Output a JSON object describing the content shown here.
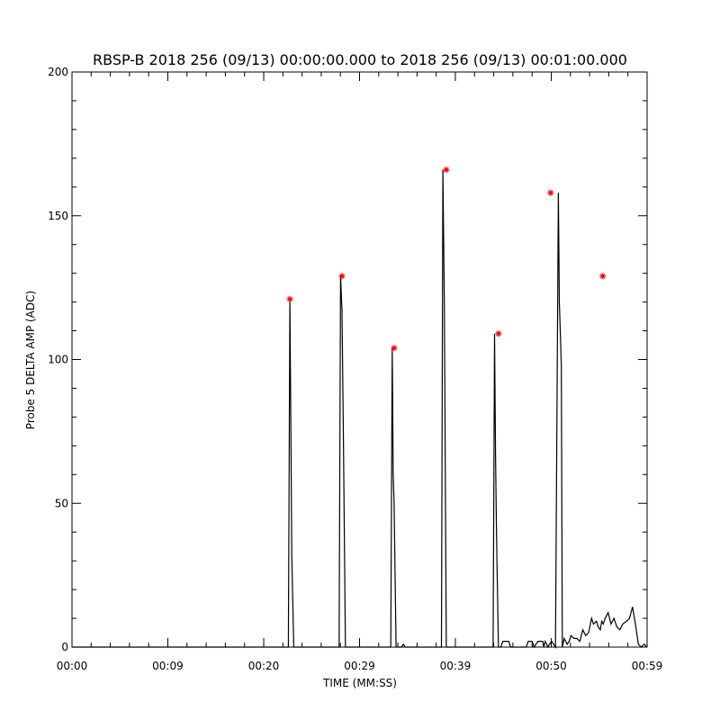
{
  "chart_data": {
    "type": "line",
    "title": "RBSP-B 2018 256 (09/13) 00:00:00.000 to 2018 256 (09/13) 00:01:00.000",
    "xlabel": "TIME (MM:SS)",
    "ylabel": "Probe 5 DELTA AMP (ADC)",
    "xlim": [
      0,
      59
    ],
    "ylim": [
      0,
      200
    ],
    "x_ticks": [
      {
        "value": 0,
        "label": "00:00"
      },
      {
        "value": 9.83,
        "label": "00:09"
      },
      {
        "value": 19.67,
        "label": "00:20"
      },
      {
        "value": 29.5,
        "label": "00:29"
      },
      {
        "value": 39.33,
        "label": "00:39"
      },
      {
        "value": 49.17,
        "label": "00:50"
      },
      {
        "value": 59,
        "label": "00:59"
      }
    ],
    "y_ticks": [
      {
        "value": 0,
        "label": "0"
      },
      {
        "value": 50,
        "label": "50"
      },
      {
        "value": 100,
        "label": "100"
      },
      {
        "value": 150,
        "label": "150"
      },
      {
        "value": 200,
        "label": "200"
      }
    ],
    "grid": false,
    "series": [
      {
        "color": "#000000",
        "x": [
          0,
          22.2,
          22.35,
          22.45,
          22.55,
          22.75,
          27.4,
          27.55,
          27.7,
          27.85,
          28.05,
          32.7,
          32.85,
          32.95,
          33.05,
          33.25,
          33.8,
          34.0,
          34.2,
          37.6,
          37.9,
          38.05,
          38.2,
          38.4,
          43.2,
          43.35,
          43.45,
          43.55,
          43.75,
          43.9,
          44.0,
          44.2,
          44.8,
          45.0,
          45.3,
          46.6,
          46.8,
          47.2,
          47.4,
          47.8,
          48.3,
          48.4,
          48.55,
          48.7,
          48.8,
          49.2,
          49.6,
          49.9,
          50.0,
          50.2,
          50.3,
          50.5,
          50.8,
          51.0,
          51.2,
          51.5,
          51.8,
          52.1,
          52.4,
          52.7,
          53.0,
          53.3,
          53.5,
          53.8,
          54.0,
          54.2,
          54.35,
          54.5,
          54.7,
          55.0,
          55.3,
          55.6,
          55.9,
          56.2,
          56.5,
          56.9,
          57.2,
          57.5,
          57.8,
          58.1,
          58.4,
          58.7,
          59.0
        ],
        "y": [
          0,
          0,
          121,
          80,
          32,
          0,
          0,
          129,
          117,
          72,
          0,
          0,
          104,
          60,
          50,
          0,
          0,
          1,
          0,
          0,
          0,
          166,
          120,
          0,
          0,
          109,
          67,
          39,
          0,
          0,
          0,
          2,
          2,
          0,
          0,
          0,
          2,
          2,
          0,
          2,
          2,
          0,
          2,
          1,
          0,
          2,
          0,
          158,
          120,
          98,
          0,
          3,
          1,
          2,
          4,
          3,
          3,
          2,
          6,
          4,
          5,
          10,
          8,
          9,
          7,
          6,
          9,
          8,
          10,
          12,
          8,
          10,
          7,
          6,
          8,
          9,
          10,
          14,
          8,
          1,
          0,
          1,
          0
        ]
      },
      {
        "name": "",
        "color": "#ff0000",
        "marker": "asterisk",
        "x": [
          22.35,
          27.7,
          33.05,
          38.4,
          43.75,
          49.1,
          54.45
        ],
        "y": [
          121,
          129,
          104,
          166,
          109,
          158,
          129
        ]
      }
    ]
  }
}
